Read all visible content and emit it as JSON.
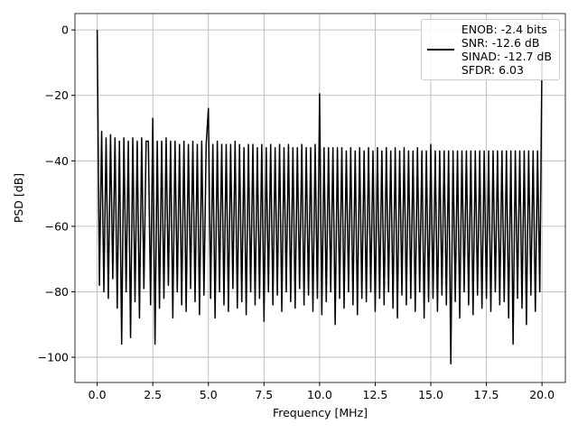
{
  "chart_data": {
    "type": "line",
    "xlabel": "Frequency [MHz]",
    "ylabel": "PSD [dB]",
    "x": [
      0,
      0.1,
      0.2,
      0.3,
      0.4,
      0.5,
      0.6,
      0.7,
      0.8,
      0.9,
      1,
      1.1,
      1.2,
      1.3,
      1.4,
      1.5,
      1.6,
      1.7,
      1.8,
      1.9,
      2,
      2.1,
      2.2,
      2.3,
      2.4,
      2.5,
      2.6,
      2.7,
      2.8,
      2.9,
      3,
      3.1,
      3.2,
      3.3,
      3.4,
      3.5,
      3.6,
      3.7,
      3.8,
      3.9,
      4,
      4.1,
      4.2,
      4.3,
      4.4,
      4.5,
      4.6,
      4.7,
      4.8,
      4.9,
      5,
      5.1,
      5.2,
      5.3,
      5.4,
      5.5,
      5.6,
      5.7,
      5.8,
      5.9,
      6,
      6.1,
      6.2,
      6.3,
      6.4,
      6.5,
      6.6,
      6.7,
      6.8,
      6.9,
      7,
      7.1,
      7.2,
      7.3,
      7.4,
      7.5,
      7.6,
      7.7,
      7.8,
      7.9,
      8,
      8.1,
      8.2,
      8.3,
      8.4,
      8.5,
      8.6,
      8.7,
      8.8,
      8.9,
      9,
      9.1,
      9.2,
      9.3,
      9.4,
      9.5,
      9.6,
      9.7,
      9.8,
      9.9,
      10,
      10.1,
      10.2,
      10.3,
      10.4,
      10.5,
      10.6,
      10.7,
      10.8,
      10.9,
      11,
      11.1,
      11.2,
      11.3,
      11.4,
      11.5,
      11.6,
      11.7,
      11.8,
      11.9,
      12,
      12.1,
      12.2,
      12.3,
      12.4,
      12.5,
      12.6,
      12.7,
      12.8,
      12.9,
      13,
      13.1,
      13.2,
      13.3,
      13.4,
      13.5,
      13.6,
      13.7,
      13.8,
      13.9,
      14,
      14.1,
      14.2,
      14.3,
      14.4,
      14.5,
      14.6,
      14.7,
      14.8,
      14.9,
      15,
      15.1,
      15.2,
      15.3,
      15.4,
      15.5,
      15.6,
      15.7,
      15.8,
      15.9,
      16,
      16.1,
      16.2,
      16.3,
      16.4,
      16.5,
      16.6,
      16.7,
      16.8,
      16.9,
      17,
      17.1,
      17.2,
      17.3,
      17.4,
      17.5,
      17.6,
      17.7,
      17.8,
      17.9,
      18,
      18.1,
      18.2,
      18.3,
      18.4,
      18.5,
      18.6,
      18.7,
      18.8,
      18.9,
      19,
      19.1,
      19.2,
      19.3,
      19.4,
      19.5,
      19.6,
      19.7,
      19.8,
      19.9,
      20
    ],
    "series": [
      {
        "name": "ENOB: -2.4 bits\nSNR: -12.6 dB\nSINAD: -12.7 dB\nSFDR: 6.03",
        "color": "#000000",
        "values": [
          0,
          -78,
          -31,
          -80,
          -33,
          -82,
          -32,
          -76,
          -33,
          -85,
          -34,
          -96,
          -33,
          -80,
          -34,
          -94,
          -33,
          -83,
          -34,
          -88,
          -33,
          -79,
          -34,
          -34,
          -84,
          -27,
          -96,
          -34,
          -85,
          -34,
          -82,
          -33,
          -78,
          -34,
          -88,
          -34,
          -80,
          -35,
          -84,
          -34,
          -86,
          -35,
          -79,
          -34,
          -83,
          -35,
          -87,
          -34,
          -81,
          -35,
          -24,
          -82,
          -35,
          -88,
          -34,
          -80,
          -35,
          -84,
          -35,
          -86,
          -35,
          -79,
          -34,
          -85,
          -35,
          -83,
          -36,
          -87,
          -35,
          -80,
          -35,
          -84,
          -36,
          -82,
          -35,
          -89,
          -36,
          -80,
          -35,
          -84,
          -36,
          -81,
          -35,
          -86,
          -36,
          -80,
          -35,
          -83,
          -36,
          -85,
          -36,
          -79,
          -35,
          -84,
          -36,
          -81,
          -36,
          -86,
          -35,
          -82,
          -19.5,
          -87,
          -36,
          -83,
          -36,
          -80,
          -36,
          -90,
          -36,
          -82,
          -36,
          -85,
          -37,
          -80,
          -36,
          -84,
          -37,
          -87,
          -36,
          -82,
          -37,
          -83,
          -36,
          -80,
          -37,
          -86,
          -36,
          -82,
          -37,
          -84,
          -36,
          -80,
          -37,
          -85,
          -36,
          -88,
          -37,
          -81,
          -36,
          -84,
          -37,
          -82,
          -37,
          -86,
          -36,
          -80,
          -37,
          -88,
          -37,
          -83,
          -35,
          -82,
          -37,
          -86,
          -37,
          -81,
          -37,
          -84,
          -37,
          -102,
          -37,
          -83,
          -37,
          -88,
          -37,
          -80,
          -37,
          -84,
          -37,
          -87,
          -37,
          -81,
          -37,
          -85,
          -37,
          -82,
          -37,
          -86,
          -37,
          -80,
          -37,
          -84,
          -37,
          -83,
          -37,
          -88,
          -37,
          -96,
          -37,
          -82,
          -37,
          -85,
          -37,
          -90,
          -37,
          -81,
          -37,
          -86,
          -37,
          -80,
          -8
        ]
      }
    ],
    "xlim": [
      -1,
      21.05
    ],
    "ylim": [
      -107.7,
      5
    ],
    "xticks": [
      {
        "value": 0,
        "label": "0.0"
      },
      2.5,
      {
        "value": 5,
        "label": "5.0"
      },
      7.5,
      {
        "value": 10,
        "label": "10.0"
      },
      12.5,
      {
        "value": 15,
        "label": "15.0"
      },
      17.5,
      {
        "value": 20,
        "label": "20.0"
      }
    ],
    "yticks": [
      0,
      {
        "value": -20,
        "label": "−20"
      },
      {
        "value": -40,
        "label": "−40"
      },
      {
        "value": -60,
        "label": "−60"
      },
      {
        "value": -80,
        "label": "−80"
      },
      {
        "value": -100,
        "label": "−100"
      }
    ],
    "grid": true,
    "legend": "upper right"
  }
}
